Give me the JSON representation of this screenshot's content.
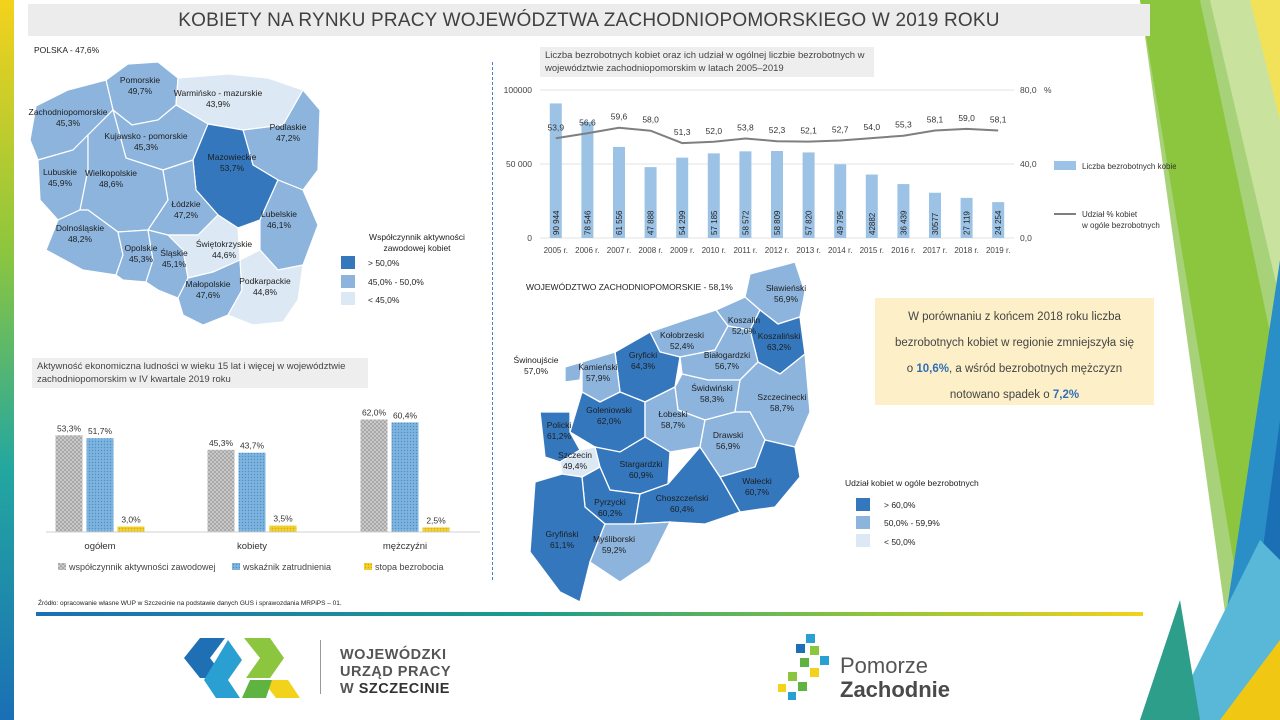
{
  "title": "KOBIETY NA RYNKU PRACY WOJEWÓDZTWA ZACHODNIOPOMORSKIEGO  W 2019 ROKU",
  "colors": {
    "high": "#3577bd",
    "mid": "#8cb4dd",
    "low": "#dce8f4",
    "bar": "#9cc3e6",
    "line": "#7f7f7f"
  },
  "poland_map": {
    "title": "POLSKA - 47,6%",
    "regions": [
      {
        "name": "Pomorskie",
        "value": "49,7%",
        "category": "mid"
      },
      {
        "name": "Warmińsko - mazurskie",
        "value": "43,9%",
        "category": "low"
      },
      {
        "name": "Zachodniopomorskie",
        "value": "45,3%",
        "category": "mid"
      },
      {
        "name": "Kujawsko - pomorskie",
        "value": "45,3%",
        "category": "mid"
      },
      {
        "name": "Podlaskie",
        "value": "47,2%",
        "category": "mid"
      },
      {
        "name": "Mazowieckie",
        "value": "53,7%",
        "category": "high"
      },
      {
        "name": "Lubuskie",
        "value": "45,9%",
        "category": "mid"
      },
      {
        "name": "Wielkopolskie",
        "value": "48,6%",
        "category": "mid"
      },
      {
        "name": "Łódzkie",
        "value": "47,2%",
        "category": "mid"
      },
      {
        "name": "Lubelskie",
        "value": "46,1%",
        "category": "mid"
      },
      {
        "name": "Dolnośląskie",
        "value": "48,2%",
        "category": "mid"
      },
      {
        "name": "Opolskie",
        "value": "45,3%",
        "category": "mid"
      },
      {
        "name": "Śląskie",
        "value": "45,1%",
        "category": "mid"
      },
      {
        "name": "Świętokrzyskie",
        "value": "44,6%",
        "category": "low"
      },
      {
        "name": "Małopolskie",
        "value": "47,6%",
        "category": "mid"
      },
      {
        "name": "Podkarpackie",
        "value": "44,8%",
        "category": "low"
      }
    ],
    "legend": {
      "title": "Współczynnik aktywności zawodowej kobiet",
      "items": [
        "> 50,0%",
        "45,0% - 50,0%",
        "< 45,0%"
      ]
    }
  },
  "region_map": {
    "title": "WOJEWÓDZTWO  ZACHODNIOPOMORSKIE  - 58,1%",
    "powiats": [
      {
        "name": "Sławieński",
        "value": "56,9%",
        "category": "mid"
      },
      {
        "name": "Koszalin",
        "value": "52,0%",
        "category": "mid"
      },
      {
        "name": "Koszaliński",
        "value": "63,2%",
        "category": "high"
      },
      {
        "name": "Kołobrzeski",
        "value": "52,4%",
        "category": "mid"
      },
      {
        "name": "Gryficki",
        "value": "64,3%",
        "category": "high"
      },
      {
        "name": "Białogardzki",
        "value": "56,7%",
        "category": "mid"
      },
      {
        "name": "Świnoujście",
        "value": "57,0%",
        "category": "mid"
      },
      {
        "name": "Kamieński",
        "value": "57,9%",
        "category": "mid"
      },
      {
        "name": "Świdwiński",
        "value": "58,3%",
        "category": "mid"
      },
      {
        "name": "Szczecinecki",
        "value": "58,7%",
        "category": "mid"
      },
      {
        "name": "Goleniowski",
        "value": "62,0%",
        "category": "high"
      },
      {
        "name": "Łobeski",
        "value": "58,7%",
        "category": "mid"
      },
      {
        "name": "Policki",
        "value": "61,2%",
        "category": "high"
      },
      {
        "name": "Drawski",
        "value": "56,9%",
        "category": "mid"
      },
      {
        "name": "Szczecin",
        "value": "49,4%",
        "category": "low"
      },
      {
        "name": "Stargardzki",
        "value": "60,9%",
        "category": "high"
      },
      {
        "name": "Wałecki",
        "value": "60,7%",
        "category": "high"
      },
      {
        "name": "Pyrzycki",
        "value": "60,2%",
        "category": "high"
      },
      {
        "name": "Choszczeński",
        "value": "60,4%",
        "category": "high"
      },
      {
        "name": "Gryfiński",
        "value": "61,1%",
        "category": "high"
      },
      {
        "name": "Myśliborski",
        "value": "59,2%",
        "category": "mid"
      }
    ],
    "legend": {
      "title": "Udział kobiet w ogóle bezrobotnych",
      "items": [
        "> 60,0%",
        "50,0% - 59,9%",
        "< 50,0%"
      ]
    }
  },
  "info_box": {
    "line1": "W porównaniu z końcem 2018 roku liczba",
    "line2": "bezrobotnych kobiet w regionie zmniejszyła się",
    "line3_pre": "o ",
    "line3_hl": "10,6%",
    "line3_post": ", a wśród bezrobotnych mężczyzn",
    "line4_pre": "notowano spadek o ",
    "line4_hl": "7,2%"
  },
  "source": "Źródło: opracowanie własne WUP w Szczecinie na podstawie danych GUS i sprawozdania MRPiPS – 01.",
  "footer": {
    "wup_line1": "WOJEWÓDZKI",
    "wup_line2": "URZĄD PRACY",
    "wup_line3a": "W ",
    "wup_line3b": "SZCZECINIE",
    "pz_line1": "Pomorze",
    "pz_line2": "Zachodnie"
  },
  "chart_data": [
    {
      "type": "bar",
      "title": "Liczba bezrobotnych kobiet oraz ich udział w ogólnej liczbie bezrobotnych w województwie zachodniopomorskim w latach 2005–2019",
      "categories": [
        "2005 r.",
        "2006 r.",
        "2007 r.",
        "2008 r.",
        "2009 r.",
        "2010 r.",
        "2011 r.",
        "2012 r.",
        "2013 r.",
        "2014 r.",
        "2015 r.",
        "2016 r.",
        "2017 r.",
        "2018 r.",
        "2019 r."
      ],
      "series": [
        {
          "name": "Liczba bezrobotnych kobiet",
          "type": "bar",
          "axis": "left",
          "values": [
            90944,
            78546,
            61556,
            47888,
            54299,
            57185,
            58572,
            58809,
            57820,
            49795,
            42882,
            36439,
            30577,
            27119,
            24254
          ],
          "labels": [
            "90 944",
            "78 546",
            "61 556",
            "47 888",
            "54 299",
            "57 185",
            "58 572",
            "58 809",
            "57 820",
            "49 795",
            "42882",
            "36 439",
            "30577",
            "27 119",
            "24 254"
          ]
        },
        {
          "name": "Udział % kobiet w ogóle bezrobotnych",
          "type": "line",
          "axis": "right",
          "values": [
            53.9,
            56.6,
            59.6,
            58.0,
            51.3,
            52.0,
            53.8,
            52.3,
            52.1,
            52.7,
            54.0,
            55.3,
            58.1,
            59.0,
            58.1
          ],
          "labels": [
            "53,9",
            "56,6",
            "59,6",
            "58,0",
            "51,3",
            "52,0",
            "53,8",
            "52,3",
            "52,1",
            "52,7",
            "54,0",
            "55,3",
            "58,1",
            "59,0",
            "58,1"
          ]
        }
      ],
      "left_axis": {
        "ticks": [
          "0",
          "50 000",
          "100000"
        ],
        "ylim": [
          0,
          100000
        ]
      },
      "right_axis": {
        "ticks": [
          "0,0",
          "40,0",
          "80,0"
        ],
        "unit": "%",
        "ylim": [
          0,
          80
        ]
      },
      "legend_position": "right",
      "grid": true
    },
    {
      "type": "bar",
      "title": "Aktywność ekonomiczna ludności w wieku 15 lat i więcej w województwie zachodniopomorskim w IV kwartale 2019 roku",
      "categories": [
        "ogółem",
        "kobiety",
        "mężczyźni"
      ],
      "series": [
        {
          "name": "współczynnik aktywności zawodowej",
          "values": [
            53.3,
            45.3,
            62.0
          ],
          "labels": [
            "53,3%",
            "45,3%",
            "62,0%"
          ],
          "color": "#c8c8c8"
        },
        {
          "name": "wskaźnik zatrudnienia",
          "values": [
            51.7,
            43.7,
            60.4
          ],
          "labels": [
            "51,7%",
            "43,7%",
            "60,4%"
          ],
          "color": "#7eb5de"
        },
        {
          "name": "stopa bezrobocia",
          "values": [
            3.0,
            3.5,
            2.5
          ],
          "labels": [
            "3,0%",
            "3,5%",
            "2,5%"
          ],
          "color": "#f2cf2a"
        }
      ],
      "ylim": [
        0,
        70
      ],
      "legend_position": "bottom",
      "grid": false
    }
  ]
}
